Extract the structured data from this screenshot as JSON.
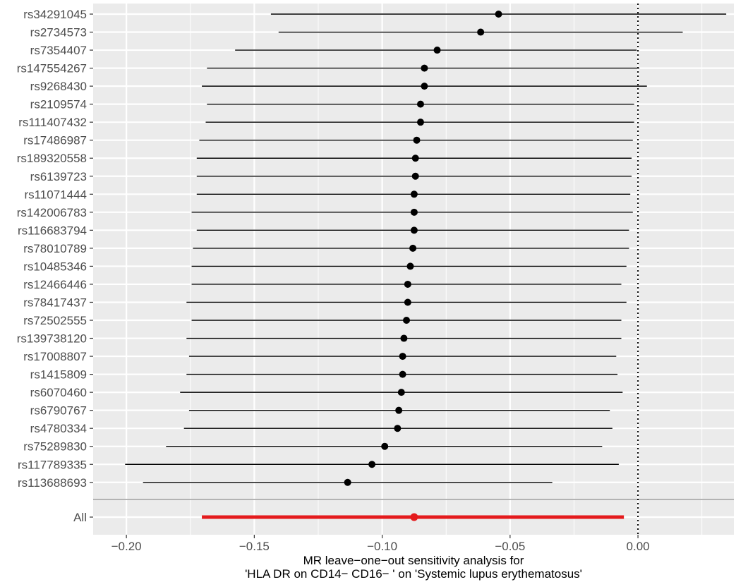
{
  "chart_data": {
    "type": "forest",
    "xlabel": "MR leave−one−out sensitivity analysis for\n'HLA DR on CD14− CD16− ' on 'Systemic lupus erythematosus'",
    "ylabel": "",
    "xlim": [
      -0.213,
      0.0375
    ],
    "xticks": [
      -0.2,
      -0.15,
      -0.1,
      -0.05,
      0.0
    ],
    "xtick_labels": [
      "−0.20",
      "−0.15",
      "−0.10",
      "−0.05",
      "0.00"
    ],
    "reference_line": 0,
    "grid": true,
    "snps": [
      {
        "label": "rs34291045",
        "estimate": -0.0545,
        "lower": -0.1435,
        "upper": 0.0345
      },
      {
        "label": "rs2734573",
        "estimate": -0.0615,
        "lower": -0.1405,
        "upper": 0.0175
      },
      {
        "label": "rs7354407",
        "estimate": -0.0785,
        "lower": -0.1575,
        "upper": -0.0005
      },
      {
        "label": "rs147554267",
        "estimate": -0.0835,
        "lower": -0.1685,
        "upper": 0.0005
      },
      {
        "label": "rs9268430",
        "estimate": -0.0835,
        "lower": -0.1705,
        "upper": 0.0035
      },
      {
        "label": "rs2109574",
        "estimate": -0.085,
        "lower": -0.1685,
        "upper": -0.0015
      },
      {
        "label": "rs111407432",
        "estimate": -0.085,
        "lower": -0.169,
        "upper": -0.0015
      },
      {
        "label": "rs17486987",
        "estimate": -0.0865,
        "lower": -0.1715,
        "upper": -0.002
      },
      {
        "label": "rs189320558",
        "estimate": -0.087,
        "lower": -0.1725,
        "upper": -0.0025
      },
      {
        "label": "rs6139723",
        "estimate": -0.087,
        "lower": -0.1725,
        "upper": -0.0025
      },
      {
        "label": "rs11071444",
        "estimate": -0.0875,
        "lower": -0.1725,
        "upper": -0.003
      },
      {
        "label": "rs142006783",
        "estimate": -0.0875,
        "lower": -0.1745,
        "upper": -0.002
      },
      {
        "label": "rs116683794",
        "estimate": -0.0875,
        "lower": -0.1725,
        "upper": -0.0035
      },
      {
        "label": "rs78010789",
        "estimate": -0.088,
        "lower": -0.174,
        "upper": -0.0035
      },
      {
        "label": "rs10485346",
        "estimate": -0.089,
        "lower": -0.1745,
        "upper": -0.0045
      },
      {
        "label": "rs12466446",
        "estimate": -0.09,
        "lower": -0.1745,
        "upper": -0.0065
      },
      {
        "label": "rs78417437",
        "estimate": -0.09,
        "lower": -0.1765,
        "upper": -0.0045
      },
      {
        "label": "rs72502555",
        "estimate": -0.0905,
        "lower": -0.1745,
        "upper": -0.0065
      },
      {
        "label": "rs139738120",
        "estimate": -0.0915,
        "lower": -0.1765,
        "upper": -0.0065
      },
      {
        "label": "rs17008807",
        "estimate": -0.092,
        "lower": -0.1755,
        "upper": -0.0085
      },
      {
        "label": "rs1415809",
        "estimate": -0.092,
        "lower": -0.1765,
        "upper": -0.008
      },
      {
        "label": "rs6070460",
        "estimate": -0.0925,
        "lower": -0.179,
        "upper": -0.006
      },
      {
        "label": "rs6790767",
        "estimate": -0.0935,
        "lower": -0.1755,
        "upper": -0.011
      },
      {
        "label": "rs4780334",
        "estimate": -0.094,
        "lower": -0.1775,
        "upper": -0.01
      },
      {
        "label": "rs75289830",
        "estimate": -0.099,
        "lower": -0.1845,
        "upper": -0.014
      },
      {
        "label": "rs117789335",
        "estimate": -0.104,
        "lower": -0.2005,
        "upper": -0.0075
      },
      {
        "label": "rs113688693",
        "estimate": -0.1135,
        "lower": -0.1935,
        "upper": -0.0335
      }
    ],
    "overall": {
      "label": "All",
      "estimate": -0.0875,
      "lower": -0.1705,
      "upper": -0.0055
    },
    "colors": {
      "panel_bg": "#ebebeb",
      "grid": "#ffffff",
      "point": "#000000",
      "overall": "#e41a1c",
      "divider": "#b3b3b3",
      "tick_text": "#4d4d4d"
    }
  }
}
